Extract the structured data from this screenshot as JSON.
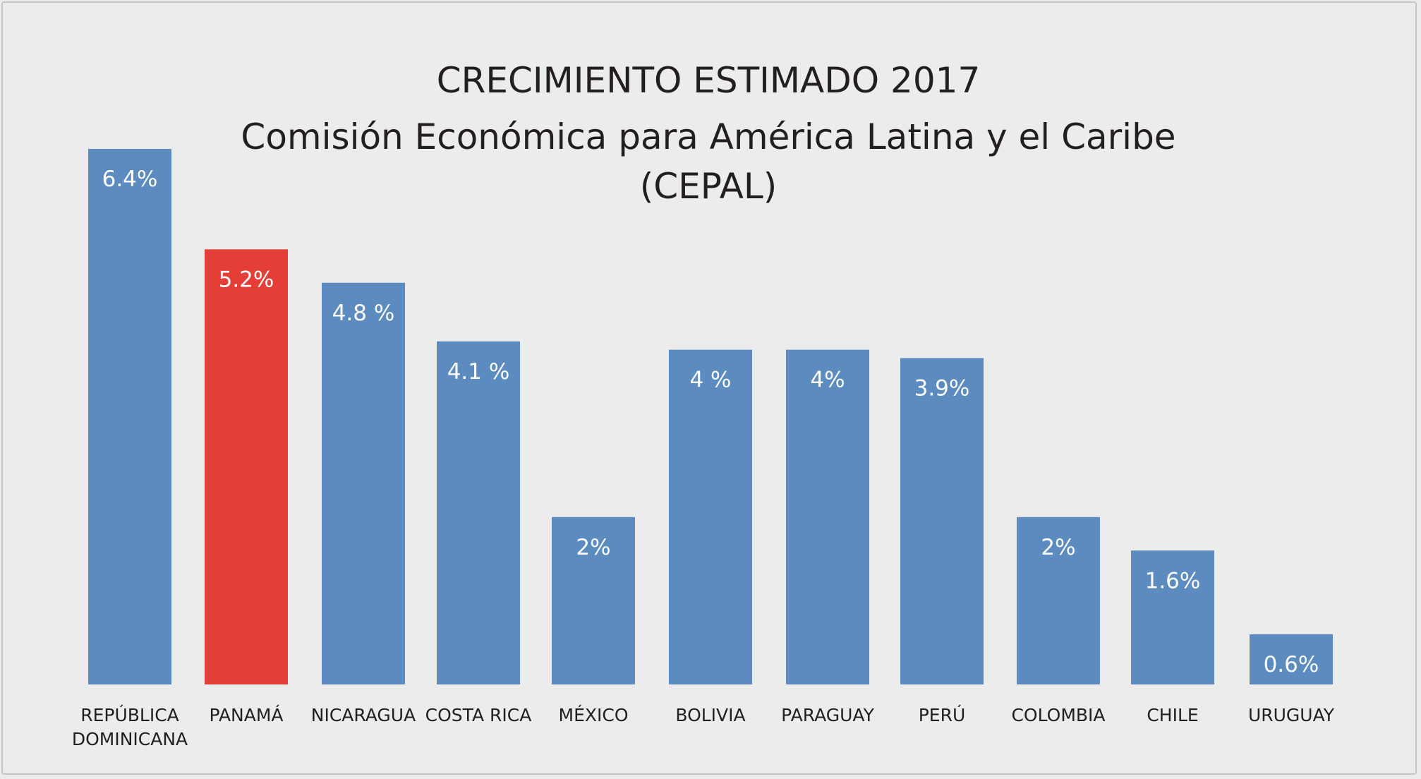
{
  "chart_data": {
    "type": "bar",
    "title": [
      "CRECIMIENTO ESTIMADO 2017",
      "Comisión Económica para América Latina y el Caribe",
      "(CEPAL)"
    ],
    "categories": [
      [
        "REPÚBLICA",
        "DOMINICANA"
      ],
      [
        "PANAMÁ"
      ],
      [
        "NICARAGUA"
      ],
      [
        "COSTA RICA"
      ],
      [
        "MÉXICO"
      ],
      [
        "BOLIVIA"
      ],
      [
        "PARAGUAY"
      ],
      [
        "PERÚ"
      ],
      [
        "COLOMBIA"
      ],
      [
        "CHILE"
      ],
      [
        "URUGUAY"
      ]
    ],
    "values": [
      6.4,
      5.2,
      4.8,
      4.1,
      2,
      4,
      4,
      3.9,
      2,
      1.6,
      0.6
    ],
    "value_labels": [
      "6.4%",
      "5.2%",
      "4.8 %",
      "4.1 %",
      "2%",
      "4 %",
      "4%",
      "3.9%",
      "2%",
      "1.6%",
      "0.6%"
    ],
    "highlight_index": 1,
    "colors": {
      "default": "#5b8bbf",
      "highlight": "#e53e37",
      "background": "#ebeceb",
      "text": "#231f20"
    },
    "xlabel": "",
    "ylabel": "",
    "ylim": [
      0,
      6.4
    ],
    "grid": false,
    "legend": "none"
  }
}
